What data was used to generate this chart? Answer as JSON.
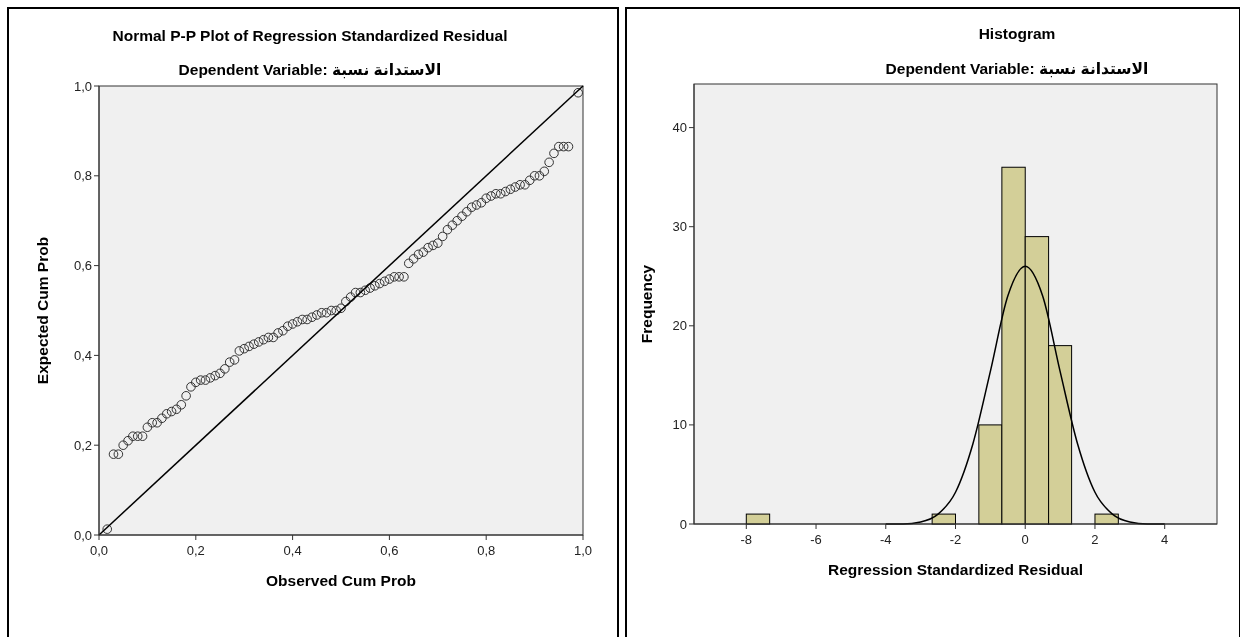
{
  "chart_data": [
    {
      "type": "scatter",
      "title": "Normal P-P Plot of Regression Standardized Residual",
      "subtitle": "Dependent Variable: الاستدانة نسبة",
      "xlabel": "Observed Cum Prob",
      "ylabel": "Expected Cum Prob",
      "xlim": [
        0,
        1
      ],
      "ylim": [
        0,
        1
      ],
      "xticks": [
        {
          "value": 0,
          "label": "0,0"
        },
        {
          "value": 0.2,
          "label": "0,2"
        },
        {
          "value": 0.4,
          "label": "0,4"
        },
        {
          "value": 0.6,
          "label": "0,6"
        },
        {
          "value": 0.8,
          "label": "0,8"
        },
        {
          "value": 1,
          "label": "1,0"
        }
      ],
      "yticks": [
        {
          "value": 0,
          "label": "0,0"
        },
        {
          "value": 0.2,
          "label": "0,2"
        },
        {
          "value": 0.4,
          "label": "0,4"
        },
        {
          "value": 0.6,
          "label": "0,6"
        },
        {
          "value": 0.8,
          "label": "0,8"
        },
        {
          "value": 1,
          "label": "1,0"
        }
      ],
      "grid": false,
      "series": [
        {
          "type": "scatter",
          "marker": "circle",
          "color": "#333333",
          "x": [
            0.017,
            0.03,
            0.04,
            0.05,
            0.06,
            0.07,
            0.08,
            0.09,
            0.1,
            0.11,
            0.12,
            0.13,
            0.14,
            0.15,
            0.16,
            0.17,
            0.18,
            0.19,
            0.2,
            0.21,
            0.22,
            0.23,
            0.24,
            0.25,
            0.26,
            0.27,
            0.28,
            0.29,
            0.3,
            0.31,
            0.32,
            0.33,
            0.34,
            0.35,
            0.36,
            0.37,
            0.38,
            0.39,
            0.4,
            0.41,
            0.42,
            0.43,
            0.44,
            0.45,
            0.46,
            0.47,
            0.48,
            0.49,
            0.5,
            0.51,
            0.52,
            0.53,
            0.54,
            0.55,
            0.56,
            0.57,
            0.58,
            0.59,
            0.6,
            0.61,
            0.62,
            0.63,
            0.64,
            0.65,
            0.66,
            0.67,
            0.68,
            0.69,
            0.7,
            0.71,
            0.72,
            0.73,
            0.74,
            0.75,
            0.76,
            0.77,
            0.78,
            0.79,
            0.8,
            0.81,
            0.82,
            0.83,
            0.84,
            0.85,
            0.86,
            0.87,
            0.88,
            0.89,
            0.9,
            0.91,
            0.92,
            0.93,
            0.94,
            0.95,
            0.96,
            0.97,
            0.99
          ],
          "values": [
            0.013,
            0.18,
            0.18,
            0.2,
            0.21,
            0.22,
            0.22,
            0.22,
            0.24,
            0.25,
            0.25,
            0.26,
            0.27,
            0.275,
            0.28,
            0.29,
            0.31,
            0.33,
            0.34,
            0.345,
            0.345,
            0.35,
            0.355,
            0.36,
            0.37,
            0.385,
            0.39,
            0.41,
            0.415,
            0.42,
            0.425,
            0.43,
            0.435,
            0.44,
            0.44,
            0.45,
            0.455,
            0.465,
            0.47,
            0.475,
            0.48,
            0.48,
            0.485,
            0.49,
            0.495,
            0.495,
            0.5,
            0.5,
            0.505,
            0.52,
            0.53,
            0.54,
            0.54,
            0.545,
            0.55,
            0.555,
            0.56,
            0.565,
            0.57,
            0.575,
            0.575,
            0.575,
            0.605,
            0.615,
            0.625,
            0.63,
            0.64,
            0.645,
            0.65,
            0.665,
            0.68,
            0.69,
            0.7,
            0.71,
            0.72,
            0.73,
            0.735,
            0.74,
            0.75,
            0.755,
            0.76,
            0.76,
            0.765,
            0.77,
            0.775,
            0.78,
            0.78,
            0.79,
            0.8,
            0.8,
            0.81,
            0.83,
            0.85,
            0.865,
            0.865,
            0.865,
            0.985
          ]
        },
        {
          "type": "line",
          "line_style": "solid",
          "color": "#000000",
          "x": [
            0,
            1
          ],
          "values": [
            0,
            1
          ]
        }
      ]
    },
    {
      "type": "histogram",
      "title": "Histogram",
      "subtitle": "Dependent Variable: الاستدانة نسبة",
      "xlabel": "Regression Standardized Residual",
      "ylabel": "Frequency",
      "xlim": [
        -9.5,
        5.5
      ],
      "ylim": [
        0,
        44.4
      ],
      "xticks": [
        -8,
        -6,
        -4,
        -2,
        0,
        2,
        4
      ],
      "yticks": [
        0,
        10,
        20,
        30,
        40
      ],
      "grid": false,
      "color": "#d3cf98",
      "bins": [
        -8,
        -7.33,
        -6.67,
        -6,
        -5.33,
        -4.67,
        -4,
        -3.33,
        -2.67,
        -2,
        -1.33,
        -0.67,
        0,
        0.67,
        1.33,
        2,
        2.67
      ],
      "values": [
        1,
        0,
        0,
        0,
        0,
        0,
        0,
        0,
        1,
        0,
        10,
        36,
        29,
        18,
        0,
        1
      ],
      "series": [
        {
          "type": "line",
          "line_style": "solid",
          "color": "#000000",
          "x": [
            -4,
            -3.5,
            -3,
            -2.5,
            -2,
            -1.5,
            -1,
            -0.5,
            0,
            0.5,
            1,
            1.5,
            2,
            2.5,
            3,
            3.5,
            4
          ],
          "values": [
            0,
            0,
            0.2,
            1,
            3.2,
            8.1,
            15.4,
            23,
            26,
            23,
            15.4,
            8.1,
            3.2,
            1,
            0.2,
            0,
            0
          ]
        }
      ]
    }
  ]
}
